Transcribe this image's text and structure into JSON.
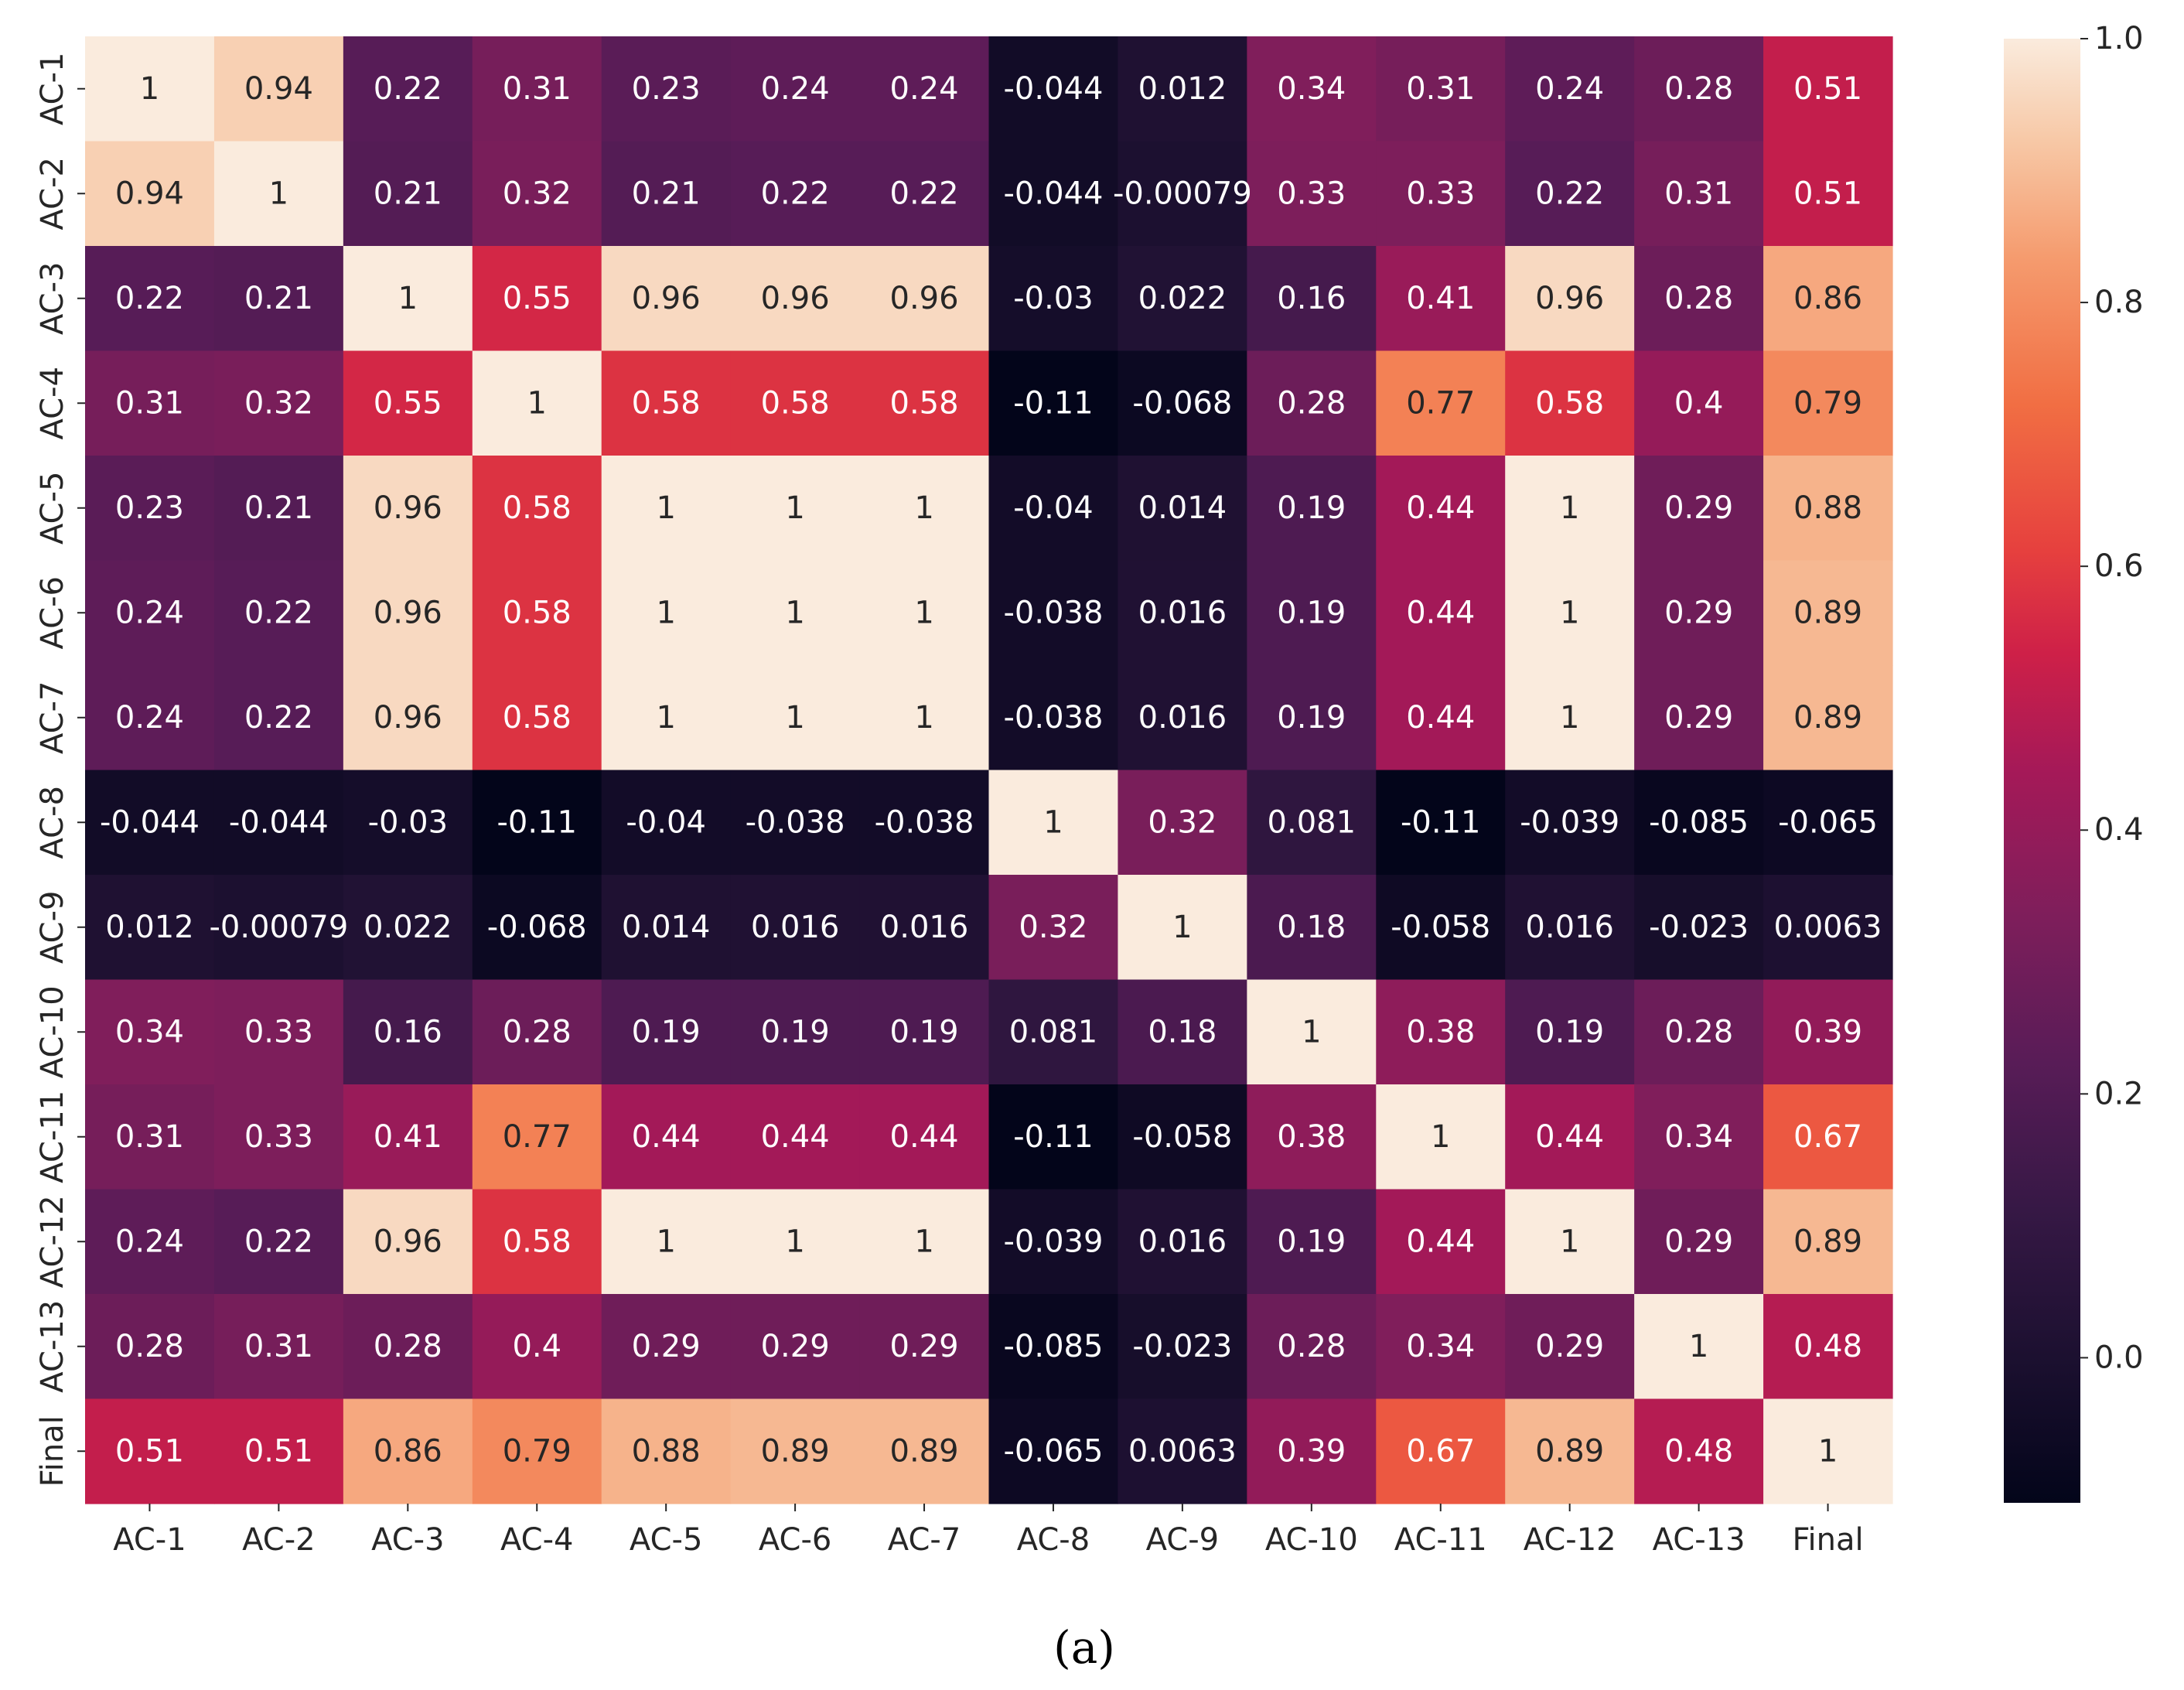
{
  "chart_data": {
    "type": "heatmap",
    "title": "",
    "xlabel": "",
    "ylabel": "",
    "row_labels": [
      "AC-1",
      "AC-2",
      "AC-3",
      "AC-4",
      "AC-5",
      "AC-6",
      "AC-7",
      "AC-8",
      "AC-9",
      "AC-10",
      "AC-11",
      "AC-12",
      "AC-13",
      "Final"
    ],
    "col_labels": [
      "AC-1",
      "AC-2",
      "AC-3",
      "AC-4",
      "AC-5",
      "AC-6",
      "AC-7",
      "AC-8",
      "AC-9",
      "AC-10",
      "AC-11",
      "AC-12",
      "AC-13",
      "Final"
    ],
    "values": [
      [
        1,
        0.94,
        0.22,
        0.31,
        0.23,
        0.24,
        0.24,
        -0.044,
        0.012,
        0.34,
        0.31,
        0.24,
        0.28,
        0.51
      ],
      [
        0.94,
        1,
        0.21,
        0.32,
        0.21,
        0.22,
        0.22,
        -0.044,
        -0.00079,
        0.33,
        0.33,
        0.22,
        0.31,
        0.51
      ],
      [
        0.22,
        0.21,
        1,
        0.55,
        0.96,
        0.96,
        0.96,
        -0.03,
        0.022,
        0.16,
        0.41,
        0.96,
        0.28,
        0.86
      ],
      [
        0.31,
        0.32,
        0.55,
        1,
        0.58,
        0.58,
        0.58,
        -0.11,
        -0.068,
        0.28,
        0.77,
        0.58,
        0.4,
        0.79
      ],
      [
        0.23,
        0.21,
        0.96,
        0.58,
        1,
        1,
        1,
        -0.04,
        0.014,
        0.19,
        0.44,
        1,
        0.29,
        0.88
      ],
      [
        0.24,
        0.22,
        0.96,
        0.58,
        1,
        1,
        1,
        -0.038,
        0.016,
        0.19,
        0.44,
        1,
        0.29,
        0.89
      ],
      [
        0.24,
        0.22,
        0.96,
        0.58,
        1,
        1,
        1,
        -0.038,
        0.016,
        0.19,
        0.44,
        1,
        0.29,
        0.89
      ],
      [
        -0.044,
        -0.044,
        -0.03,
        -0.11,
        -0.04,
        -0.038,
        -0.038,
        1,
        0.32,
        0.081,
        -0.11,
        -0.039,
        -0.085,
        -0.065
      ],
      [
        0.012,
        -0.00079,
        0.022,
        -0.068,
        0.014,
        0.016,
        0.016,
        0.32,
        1,
        0.18,
        -0.058,
        0.016,
        -0.023,
        0.0063
      ],
      [
        0.34,
        0.33,
        0.16,
        0.28,
        0.19,
        0.19,
        0.19,
        0.081,
        0.18,
        1,
        0.38,
        0.19,
        0.28,
        0.39
      ],
      [
        0.31,
        0.33,
        0.41,
        0.77,
        0.44,
        0.44,
        0.44,
        -0.11,
        -0.058,
        0.38,
        1,
        0.44,
        0.34,
        0.67
      ],
      [
        0.24,
        0.22,
        0.96,
        0.58,
        1,
        1,
        1,
        -0.039,
        0.016,
        0.19,
        0.44,
        1,
        0.29,
        0.89
      ],
      [
        0.28,
        0.31,
        0.28,
        0.4,
        0.29,
        0.29,
        0.29,
        -0.085,
        -0.023,
        0.28,
        0.34,
        0.29,
        1,
        0.48
      ],
      [
        0.51,
        0.51,
        0.86,
        0.79,
        0.88,
        0.89,
        0.89,
        -0.065,
        0.0063,
        0.39,
        0.67,
        0.89,
        0.48,
        1
      ]
    ],
    "cell_labels": [
      [
        "1",
        "0.94",
        "0.22",
        "0.31",
        "0.23",
        "0.24",
        "0.24",
        "-0.044",
        "0.012",
        "0.34",
        "0.31",
        "0.24",
        "0.28",
        "0.51"
      ],
      [
        "0.94",
        "1",
        "0.21",
        "0.32",
        "0.21",
        "0.22",
        "0.22",
        "-0.044",
        "-0.00079",
        "0.33",
        "0.33",
        "0.22",
        "0.31",
        "0.51"
      ],
      [
        "0.22",
        "0.21",
        "1",
        "0.55",
        "0.96",
        "0.96",
        "0.96",
        "-0.03",
        "0.022",
        "0.16",
        "0.41",
        "0.96",
        "0.28",
        "0.86"
      ],
      [
        "0.31",
        "0.32",
        "0.55",
        "1",
        "0.58",
        "0.58",
        "0.58",
        "-0.11",
        "-0.068",
        "0.28",
        "0.77",
        "0.58",
        "0.4",
        "0.79"
      ],
      [
        "0.23",
        "0.21",
        "0.96",
        "0.58",
        "1",
        "1",
        "1",
        "-0.04",
        "0.014",
        "0.19",
        "0.44",
        "1",
        "0.29",
        "0.88"
      ],
      [
        "0.24",
        "0.22",
        "0.96",
        "0.58",
        "1",
        "1",
        "1",
        "-0.038",
        "0.016",
        "0.19",
        "0.44",
        "1",
        "0.29",
        "0.89"
      ],
      [
        "0.24",
        "0.22",
        "0.96",
        "0.58",
        "1",
        "1",
        "1",
        "-0.038",
        "0.016",
        "0.19",
        "0.44",
        "1",
        "0.29",
        "0.89"
      ],
      [
        "-0.044",
        "-0.044",
        "-0.03",
        "-0.11",
        "-0.04",
        "-0.038",
        "-0.038",
        "1",
        "0.32",
        "0.081",
        "-0.11",
        "-0.039",
        "-0.085",
        "-0.065"
      ],
      [
        "0.012",
        "-0.00079",
        "0.022",
        "-0.068",
        "0.014",
        "0.016",
        "0.016",
        "0.32",
        "1",
        "0.18",
        "-0.058",
        "0.016",
        "-0.023",
        "0.0063"
      ],
      [
        "0.34",
        "0.33",
        "0.16",
        "0.28",
        "0.19",
        "0.19",
        "0.19",
        "0.081",
        "0.18",
        "1",
        "0.38",
        "0.19",
        "0.28",
        "0.39"
      ],
      [
        "0.31",
        "0.33",
        "0.41",
        "0.77",
        "0.44",
        "0.44",
        "0.44",
        "-0.11",
        "-0.058",
        "0.38",
        "1",
        "0.44",
        "0.34",
        "0.67"
      ],
      [
        "0.24",
        "0.22",
        "0.96",
        "0.58",
        "1",
        "1",
        "1",
        "-0.039",
        "0.016",
        "0.19",
        "0.44",
        "1",
        "0.29",
        "0.89"
      ],
      [
        "0.28",
        "0.31",
        "0.28",
        "0.4",
        "0.29",
        "0.29",
        "0.29",
        "-0.085",
        "-0.023",
        "0.28",
        "0.34",
        "0.29",
        "1",
        "0.48"
      ],
      [
        "0.51",
        "0.51",
        "0.86",
        "0.79",
        "0.88",
        "0.89",
        "0.89",
        "-0.065",
        "0.0063",
        "0.39",
        "0.67",
        "0.89",
        "0.48",
        "1"
      ]
    ],
    "value_range": [
      -0.11,
      1.0
    ],
    "colormap": "rocket",
    "colorbar": {
      "position": "right",
      "ticks": [
        0.0,
        0.2,
        0.4,
        0.6,
        0.8,
        1.0
      ],
      "tick_labels": [
        "0.0",
        "0.2",
        "0.4",
        "0.6",
        "0.8",
        "1.0"
      ]
    },
    "grid": false
  },
  "caption": "(a)"
}
